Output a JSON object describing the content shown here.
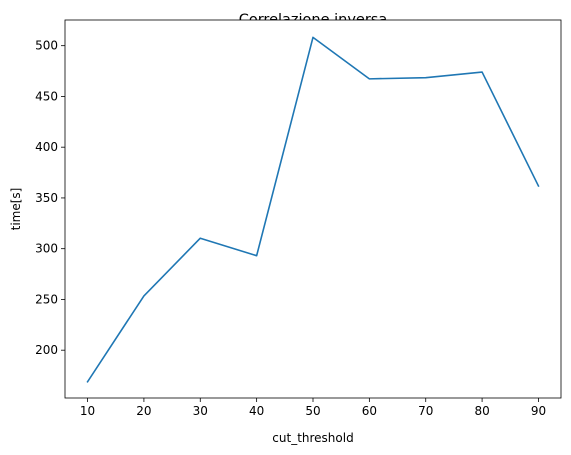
{
  "chart_data": {
    "type": "line",
    "title": "Correlazione inversa",
    "xlabel": "cut_threshold",
    "ylabel": "time[s]",
    "x": [
      10,
      20,
      30,
      40,
      50,
      60,
      70,
      80,
      90
    ],
    "series": [
      {
        "values": [
          168.9,
          253.5,
          310.3,
          293.1,
          508.2,
          467.3,
          468.5,
          474.0,
          361.8
        ],
        "color": "#1f77b4"
      }
    ],
    "xticks": [
      10,
      20,
      30,
      40,
      50,
      60,
      70,
      80,
      90
    ],
    "yticks": [
      200,
      250,
      300,
      350,
      400,
      450,
      500
    ],
    "xlim": [
      6,
      94
    ],
    "ylim": [
      152.9,
      525.3
    ],
    "grid": false,
    "legend": "none"
  }
}
